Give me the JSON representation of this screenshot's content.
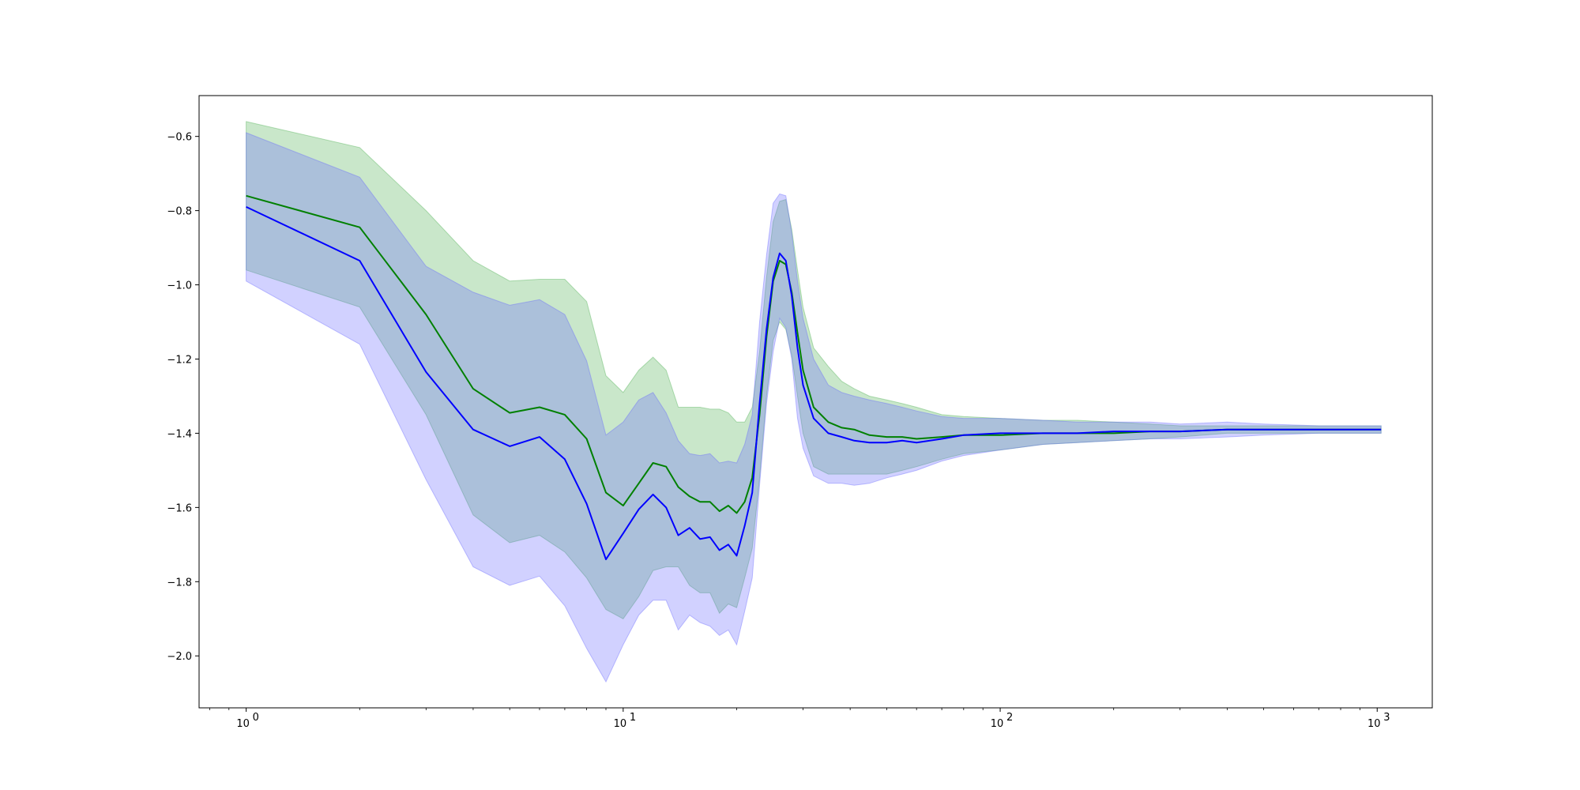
{
  "chart_data": {
    "type": "line",
    "title": "",
    "xlabel": "",
    "ylabel": "",
    "x_scale": "log",
    "xlim": [
      0.75,
      1400
    ],
    "ylim": [
      -2.14,
      -0.49
    ],
    "grid": false,
    "x_tick_values": [
      1,
      10,
      100,
      1000
    ],
    "x_tick_labels": [
      {
        "base": "10",
        "exp": "0"
      },
      {
        "base": "10",
        "exp": "1"
      },
      {
        "base": "10",
        "exp": "2"
      },
      {
        "base": "10",
        "exp": "3"
      }
    ],
    "y_ticks": [
      -0.6,
      -0.8,
      -1.0,
      -1.2,
      -1.4,
      -1.6,
      -1.8,
      -2.0
    ],
    "y_tick_labels": [
      "−0.6",
      "−0.8",
      "−1.0",
      "−1.2",
      "−1.4",
      "−1.6",
      "−1.8",
      "−2.0"
    ],
    "series": [
      {
        "color": "#008000",
        "band_color": "#4caf50",
        "points": [
          [
            1,
            -0.76,
            -0.56,
            -0.96
          ],
          [
            2,
            -0.845,
            -0.63,
            -1.06
          ],
          [
            3,
            -1.08,
            -0.8,
            -1.35
          ],
          [
            4,
            -1.28,
            -0.935,
            -1.62
          ],
          [
            5,
            -1.345,
            -0.99,
            -1.695
          ],
          [
            6,
            -1.33,
            -0.985,
            -1.675
          ],
          [
            7,
            -1.35,
            -0.985,
            -1.72
          ],
          [
            8,
            -1.415,
            -1.045,
            -1.79
          ],
          [
            9,
            -1.56,
            -1.245,
            -1.875
          ],
          [
            10,
            -1.595,
            -1.29,
            -1.9
          ],
          [
            11,
            -1.535,
            -1.23,
            -1.84
          ],
          [
            12,
            -1.48,
            -1.195,
            -1.77
          ],
          [
            13,
            -1.49,
            -1.23,
            -1.76
          ],
          [
            14,
            -1.545,
            -1.33,
            -1.76
          ],
          [
            15,
            -1.57,
            -1.33,
            -1.81
          ],
          [
            16,
            -1.585,
            -1.33,
            -1.83
          ],
          [
            17,
            -1.585,
            -1.335,
            -1.83
          ],
          [
            18,
            -1.61,
            -1.335,
            -1.885
          ],
          [
            19,
            -1.595,
            -1.345,
            -1.86
          ],
          [
            20,
            -1.615,
            -1.37,
            -1.87
          ],
          [
            21,
            -1.585,
            -1.37,
            -1.79
          ],
          [
            22,
            -1.52,
            -1.33,
            -1.71
          ],
          [
            23,
            -1.35,
            -1.18,
            -1.52
          ],
          [
            24,
            -1.14,
            -0.98,
            -1.3
          ],
          [
            25,
            -0.99,
            -0.83,
            -1.15
          ],
          [
            26,
            -0.935,
            -0.775,
            -1.1
          ],
          [
            27,
            -0.945,
            -0.77,
            -1.12
          ],
          [
            28,
            -1.02,
            -0.85,
            -1.19
          ],
          [
            29,
            -1.13,
            -0.96,
            -1.3
          ],
          [
            30,
            -1.23,
            -1.06,
            -1.4
          ],
          [
            32,
            -1.33,
            -1.17,
            -1.49
          ],
          [
            35,
            -1.37,
            -1.22,
            -1.51
          ],
          [
            38,
            -1.385,
            -1.26,
            -1.51
          ],
          [
            41,
            -1.39,
            -1.28,
            -1.51
          ],
          [
            45,
            -1.405,
            -1.3,
            -1.51
          ],
          [
            50,
            -1.41,
            -1.31,
            -1.51
          ],
          [
            55,
            -1.41,
            -1.32,
            -1.5
          ],
          [
            60,
            -1.415,
            -1.33,
            -1.49
          ],
          [
            70,
            -1.41,
            -1.35,
            -1.47
          ],
          [
            80,
            -1.405,
            -1.355,
            -1.455
          ],
          [
            100,
            -1.405,
            -1.36,
            -1.445
          ],
          [
            130,
            -1.4,
            -1.365,
            -1.43
          ],
          [
            160,
            -1.4,
            -1.365,
            -1.425
          ],
          [
            200,
            -1.4,
            -1.37,
            -1.42
          ],
          [
            250,
            -1.395,
            -1.375,
            -1.415
          ],
          [
            300,
            -1.395,
            -1.38,
            -1.41
          ],
          [
            400,
            -1.39,
            -1.38,
            -1.4
          ],
          [
            500,
            -1.39,
            -1.38,
            -1.4
          ],
          [
            700,
            -1.39,
            -1.38,
            -1.4
          ],
          [
            1024,
            -1.39,
            -1.38,
            -1.4
          ]
        ]
      },
      {
        "color": "#0000ff",
        "band_color": "#6666ff",
        "points": [
          [
            1,
            -0.79,
            -0.59,
            -0.99
          ],
          [
            2,
            -0.935,
            -0.71,
            -1.16
          ],
          [
            3,
            -1.235,
            -0.95,
            -1.525
          ],
          [
            4,
            -1.39,
            -1.02,
            -1.76
          ],
          [
            5,
            -1.435,
            -1.055,
            -1.81
          ],
          [
            6,
            -1.41,
            -1.04,
            -1.785
          ],
          [
            7,
            -1.47,
            -1.08,
            -1.865
          ],
          [
            8,
            -1.59,
            -1.205,
            -1.98
          ],
          [
            9,
            -1.74,
            -1.405,
            -2.07
          ],
          [
            10,
            -1.67,
            -1.37,
            -1.97
          ],
          [
            11,
            -1.605,
            -1.31,
            -1.89
          ],
          [
            12,
            -1.565,
            -1.29,
            -1.85
          ],
          [
            13,
            -1.6,
            -1.345,
            -1.85
          ],
          [
            14,
            -1.675,
            -1.42,
            -1.93
          ],
          [
            15,
            -1.655,
            -1.455,
            -1.89
          ],
          [
            16,
            -1.685,
            -1.46,
            -1.91
          ],
          [
            17,
            -1.68,
            -1.455,
            -1.92
          ],
          [
            18,
            -1.715,
            -1.48,
            -1.945
          ],
          [
            19,
            -1.7,
            -1.475,
            -1.93
          ],
          [
            20,
            -1.73,
            -1.48,
            -1.97
          ],
          [
            21,
            -1.65,
            -1.43,
            -1.88
          ],
          [
            22,
            -1.56,
            -1.35,
            -1.79
          ],
          [
            23,
            -1.32,
            -1.1,
            -1.54
          ],
          [
            24,
            -1.12,
            -0.92,
            -1.32
          ],
          [
            25,
            -0.98,
            -0.78,
            -1.18
          ],
          [
            26,
            -0.915,
            -0.755,
            -1.09
          ],
          [
            27,
            -0.935,
            -0.76,
            -1.115
          ],
          [
            28,
            -1.03,
            -0.86,
            -1.2
          ],
          [
            29,
            -1.17,
            -0.99,
            -1.36
          ],
          [
            30,
            -1.27,
            -1.09,
            -1.44
          ],
          [
            32,
            -1.36,
            -1.2,
            -1.515
          ],
          [
            35,
            -1.4,
            -1.27,
            -1.535
          ],
          [
            38,
            -1.41,
            -1.29,
            -1.535
          ],
          [
            41,
            -1.42,
            -1.3,
            -1.54
          ],
          [
            45,
            -1.425,
            -1.31,
            -1.535
          ],
          [
            50,
            -1.425,
            -1.32,
            -1.52
          ],
          [
            55,
            -1.42,
            -1.33,
            -1.51
          ],
          [
            60,
            -1.425,
            -1.34,
            -1.5
          ],
          [
            70,
            -1.415,
            -1.355,
            -1.475
          ],
          [
            80,
            -1.405,
            -1.36,
            -1.46
          ],
          [
            100,
            -1.4,
            -1.36,
            -1.445
          ],
          [
            130,
            -1.4,
            -1.365,
            -1.43
          ],
          [
            160,
            -1.4,
            -1.37,
            -1.425
          ],
          [
            200,
            -1.395,
            -1.37,
            -1.42
          ],
          [
            250,
            -1.395,
            -1.37,
            -1.415
          ],
          [
            300,
            -1.395,
            -1.375,
            -1.415
          ],
          [
            400,
            -1.39,
            -1.37,
            -1.41
          ],
          [
            500,
            -1.39,
            -1.375,
            -1.405
          ],
          [
            700,
            -1.39,
            -1.38,
            -1.4
          ],
          [
            1024,
            -1.39,
            -1.38,
            -1.4
          ]
        ]
      }
    ]
  }
}
